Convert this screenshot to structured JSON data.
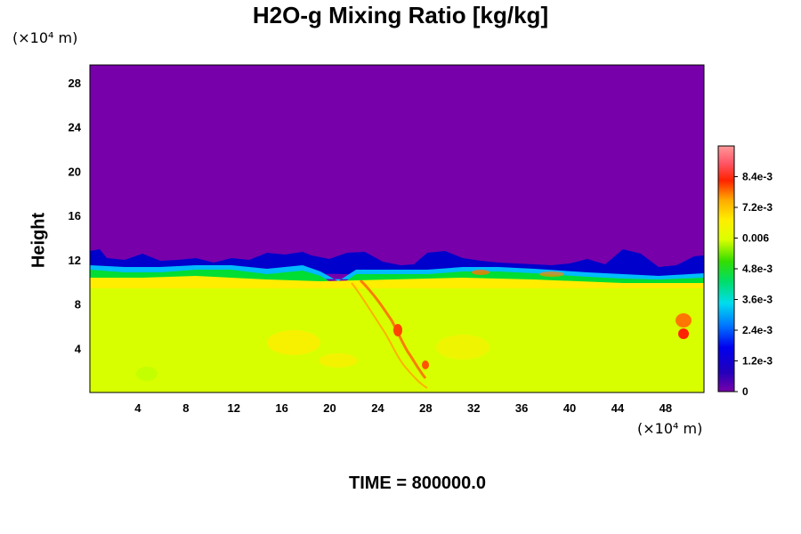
{
  "chart_data": {
    "type": "heatmap",
    "title": "H2O-g Mixing Ratio [kg/kg]",
    "xlabel": "",
    "ylabel": "Height",
    "x_unit": "(×10⁴ m)",
    "y_unit": "(×10⁴ m)",
    "xlim": [
      0,
      51.2
    ],
    "ylim": [
      0,
      29.6
    ],
    "x_ticks": [
      "4",
      "8",
      "12",
      "16",
      "20",
      "24",
      "28",
      "32",
      "36",
      "40",
      "44",
      "48"
    ],
    "y_ticks": [
      "4",
      "8",
      "12",
      "16",
      "20",
      "24",
      "28"
    ],
    "colorbar": {
      "range": [
        0,
        0.0096
      ],
      "tick_values": [
        0,
        0.0012,
        0.0024,
        0.0036,
        0.0048,
        0.006,
        0.0072,
        0.0084
      ],
      "tick_labels": [
        "0",
        "1.2e-3",
        "2.4e-3",
        "3.6e-3",
        "4.8e-3",
        "0.006",
        "7.2e-3",
        "8.4e-3"
      ]
    },
    "fields": {
      "moist_layer_top_height": 10.5,
      "dry_region_value": 0,
      "moist_region_value": 0.006
    },
    "colors": {
      "dry": "#7700aa",
      "moist": "#d8ff00",
      "transition_blue": "#0000dd",
      "transition_green": "#00dd33",
      "high": "#ff2200"
    }
  },
  "footer": {
    "time_label": "TIME = 800000.0"
  }
}
